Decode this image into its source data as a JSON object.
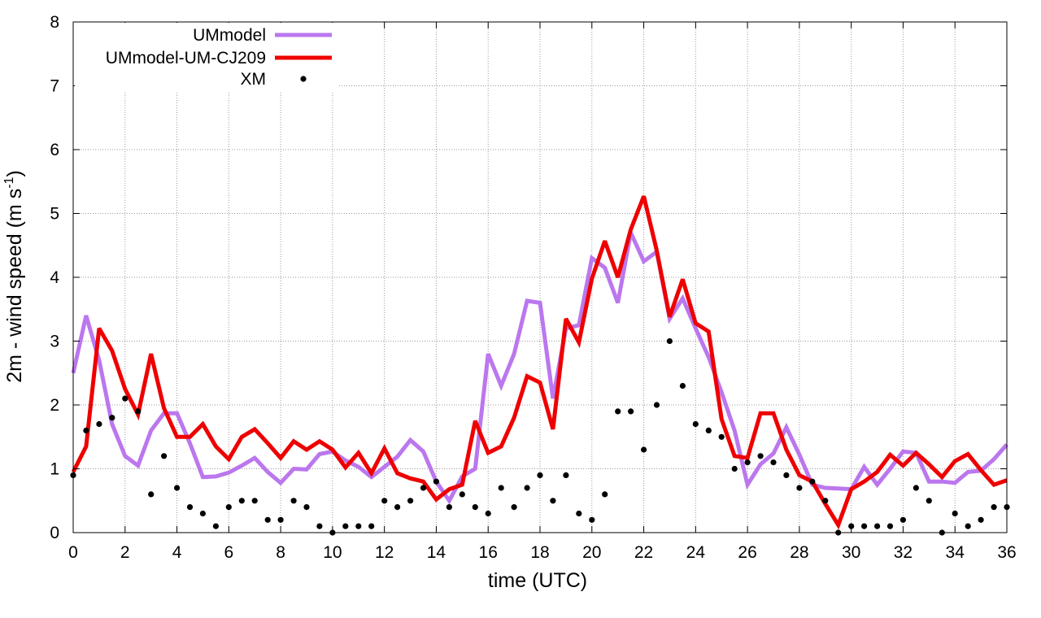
{
  "chart_data": {
    "type": "line",
    "title": "",
    "xlabel": "time (UTC)",
    "ylabel_parts": {
      "main": "2m - wind speed  (m s",
      "sup": "-1",
      "close": ")"
    },
    "xlim": [
      0,
      36
    ],
    "ylim": [
      0,
      8
    ],
    "xticks": [
      0,
      2,
      4,
      6,
      8,
      10,
      12,
      14,
      16,
      18,
      20,
      22,
      24,
      26,
      28,
      30,
      32,
      34,
      36
    ],
    "yticks": [
      0,
      1,
      2,
      3,
      4,
      5,
      6,
      7,
      8
    ],
    "grid": true,
    "legend_position": "top-left",
    "series": [
      {
        "name": "UMmodel",
        "style": "line",
        "color": "#bb77ee",
        "x": [
          0,
          0.5,
          1,
          1.5,
          2,
          2.5,
          3,
          3.5,
          4,
          4.5,
          5,
          5.5,
          6,
          6.5,
          7,
          7.5,
          8,
          8.5,
          9,
          9.5,
          10,
          10.5,
          11,
          11.5,
          12,
          12.5,
          13,
          13.5,
          14,
          14.5,
          15,
          15.5,
          16,
          16.5,
          17,
          17.5,
          18,
          18.5,
          19,
          19.5,
          20,
          20.5,
          21,
          21.5,
          22,
          22.5,
          23,
          23.5,
          24,
          24.5,
          25,
          25.5,
          26,
          26.5,
          27,
          27.5,
          28,
          28.5,
          29,
          29.5,
          30,
          30.5,
          31,
          31.5,
          32,
          32.5,
          33,
          33.5,
          34,
          34.5,
          35,
          35.5,
          36
        ],
        "values": [
          2.5,
          3.4,
          2.7,
          1.7,
          1.2,
          1.05,
          1.6,
          1.87,
          1.87,
          1.4,
          0.87,
          0.88,
          0.94,
          1.05,
          1.17,
          0.95,
          0.78,
          1.0,
          0.99,
          1.23,
          1.27,
          1.13,
          1.03,
          0.87,
          1.03,
          1.19,
          1.45,
          1.27,
          0.8,
          0.5,
          0.88,
          1.0,
          2.8,
          2.3,
          2.8,
          3.63,
          3.6,
          2.1,
          3.2,
          3.25,
          4.3,
          4.15,
          3.6,
          4.7,
          4.25,
          4.4,
          3.35,
          3.67,
          3.2,
          2.75,
          2.2,
          1.6,
          0.75,
          1.07,
          1.24,
          1.65,
          1.22,
          0.75,
          0.7,
          0.69,
          0.68,
          1.03,
          0.75,
          1.0,
          1.27,
          1.25,
          0.8,
          0.8,
          0.78,
          0.95,
          0.97,
          1.15,
          1.38
        ]
      },
      {
        "name": "UMmodel-UM-CJ209",
        "style": "line",
        "color": "#ee0000",
        "x": [
          0,
          0.5,
          1,
          1.5,
          2,
          2.5,
          3,
          3.5,
          4,
          4.5,
          5,
          5.5,
          6,
          6.5,
          7,
          7.5,
          8,
          8.5,
          9,
          9.5,
          10,
          10.5,
          11,
          11.5,
          12,
          12.5,
          13,
          13.5,
          14,
          14.5,
          15,
          15.5,
          16,
          16.5,
          17,
          17.5,
          18,
          18.5,
          19,
          19.5,
          20,
          20.5,
          21,
          21.5,
          22,
          22.5,
          23,
          23.5,
          24,
          24.5,
          25,
          25.5,
          26,
          26.5,
          27,
          27.5,
          28,
          28.5,
          29,
          29.5,
          30,
          30.5,
          31,
          31.5,
          32,
          32.5,
          33,
          33.5,
          34,
          34.5,
          35,
          35.5,
          36
        ],
        "values": [
          0.95,
          1.35,
          3.2,
          2.85,
          2.25,
          1.85,
          2.8,
          1.95,
          1.5,
          1.5,
          1.7,
          1.35,
          1.15,
          1.5,
          1.62,
          1.4,
          1.17,
          1.43,
          1.3,
          1.43,
          1.3,
          1.02,
          1.25,
          0.93,
          1.32,
          0.93,
          0.85,
          0.8,
          0.52,
          0.68,
          0.75,
          1.75,
          1.25,
          1.35,
          1.8,
          2.45,
          2.35,
          1.62,
          3.35,
          2.98,
          3.98,
          4.57,
          4.0,
          4.75,
          5.27,
          4.42,
          3.38,
          3.97,
          3.28,
          3.15,
          1.78,
          1.2,
          1.17,
          1.87,
          1.87,
          1.3,
          0.9,
          0.8,
          0.45,
          0.12,
          0.68,
          0.8,
          0.95,
          1.22,
          1.05,
          1.25,
          1.07,
          0.87,
          1.12,
          1.23,
          0.98,
          0.75,
          0.82
        ]
      },
      {
        "name": "XM",
        "style": "points",
        "color": "#000000",
        "x": [
          0,
          0.5,
          1,
          1.5,
          2,
          2.5,
          3,
          3.5,
          4,
          4.5,
          5,
          5.5,
          6,
          6.5,
          7,
          7.5,
          8,
          8.5,
          9,
          9.5,
          10,
          10.5,
          11,
          11.5,
          12,
          12.5,
          13,
          13.5,
          14,
          14.5,
          15,
          15.5,
          16,
          16.5,
          17,
          17.5,
          18,
          18.5,
          19,
          19.5,
          20,
          20.5,
          21,
          21.5,
          22,
          22.5,
          23,
          23.5,
          24,
          24.5,
          25,
          25.5,
          26,
          26.5,
          27,
          27.5,
          28,
          28.5,
          29,
          29.5,
          30,
          30.5,
          31,
          31.5,
          32,
          32.5,
          33,
          33.5,
          34,
          34.5,
          35,
          35.5,
          36
        ],
        "values": [
          0.9,
          1.6,
          1.7,
          1.8,
          2.1,
          1.9,
          0.6,
          1.2,
          0.7,
          0.4,
          0.3,
          0.1,
          0.4,
          0.5,
          0.5,
          0.2,
          0.2,
          0.5,
          0.4,
          0.1,
          0.0,
          0.1,
          0.1,
          0.1,
          0.5,
          0.4,
          0.5,
          0.7,
          0.8,
          0.4,
          0.6,
          0.4,
          0.3,
          0.7,
          0.4,
          0.7,
          0.9,
          0.5,
          0.9,
          0.3,
          0.2,
          0.6,
          1.9,
          1.9,
          1.3,
          2.0,
          3.0,
          2.3,
          1.7,
          1.6,
          1.5,
          1.0,
          1.1,
          1.2,
          1.1,
          0.9,
          0.7,
          0.8,
          0.5,
          0.0,
          0.1,
          0.1,
          0.1,
          0.1,
          0.2,
          0.7,
          0.5,
          0.0,
          0.3,
          0.1,
          0.2,
          0.4,
          0.4
        ]
      }
    ]
  }
}
